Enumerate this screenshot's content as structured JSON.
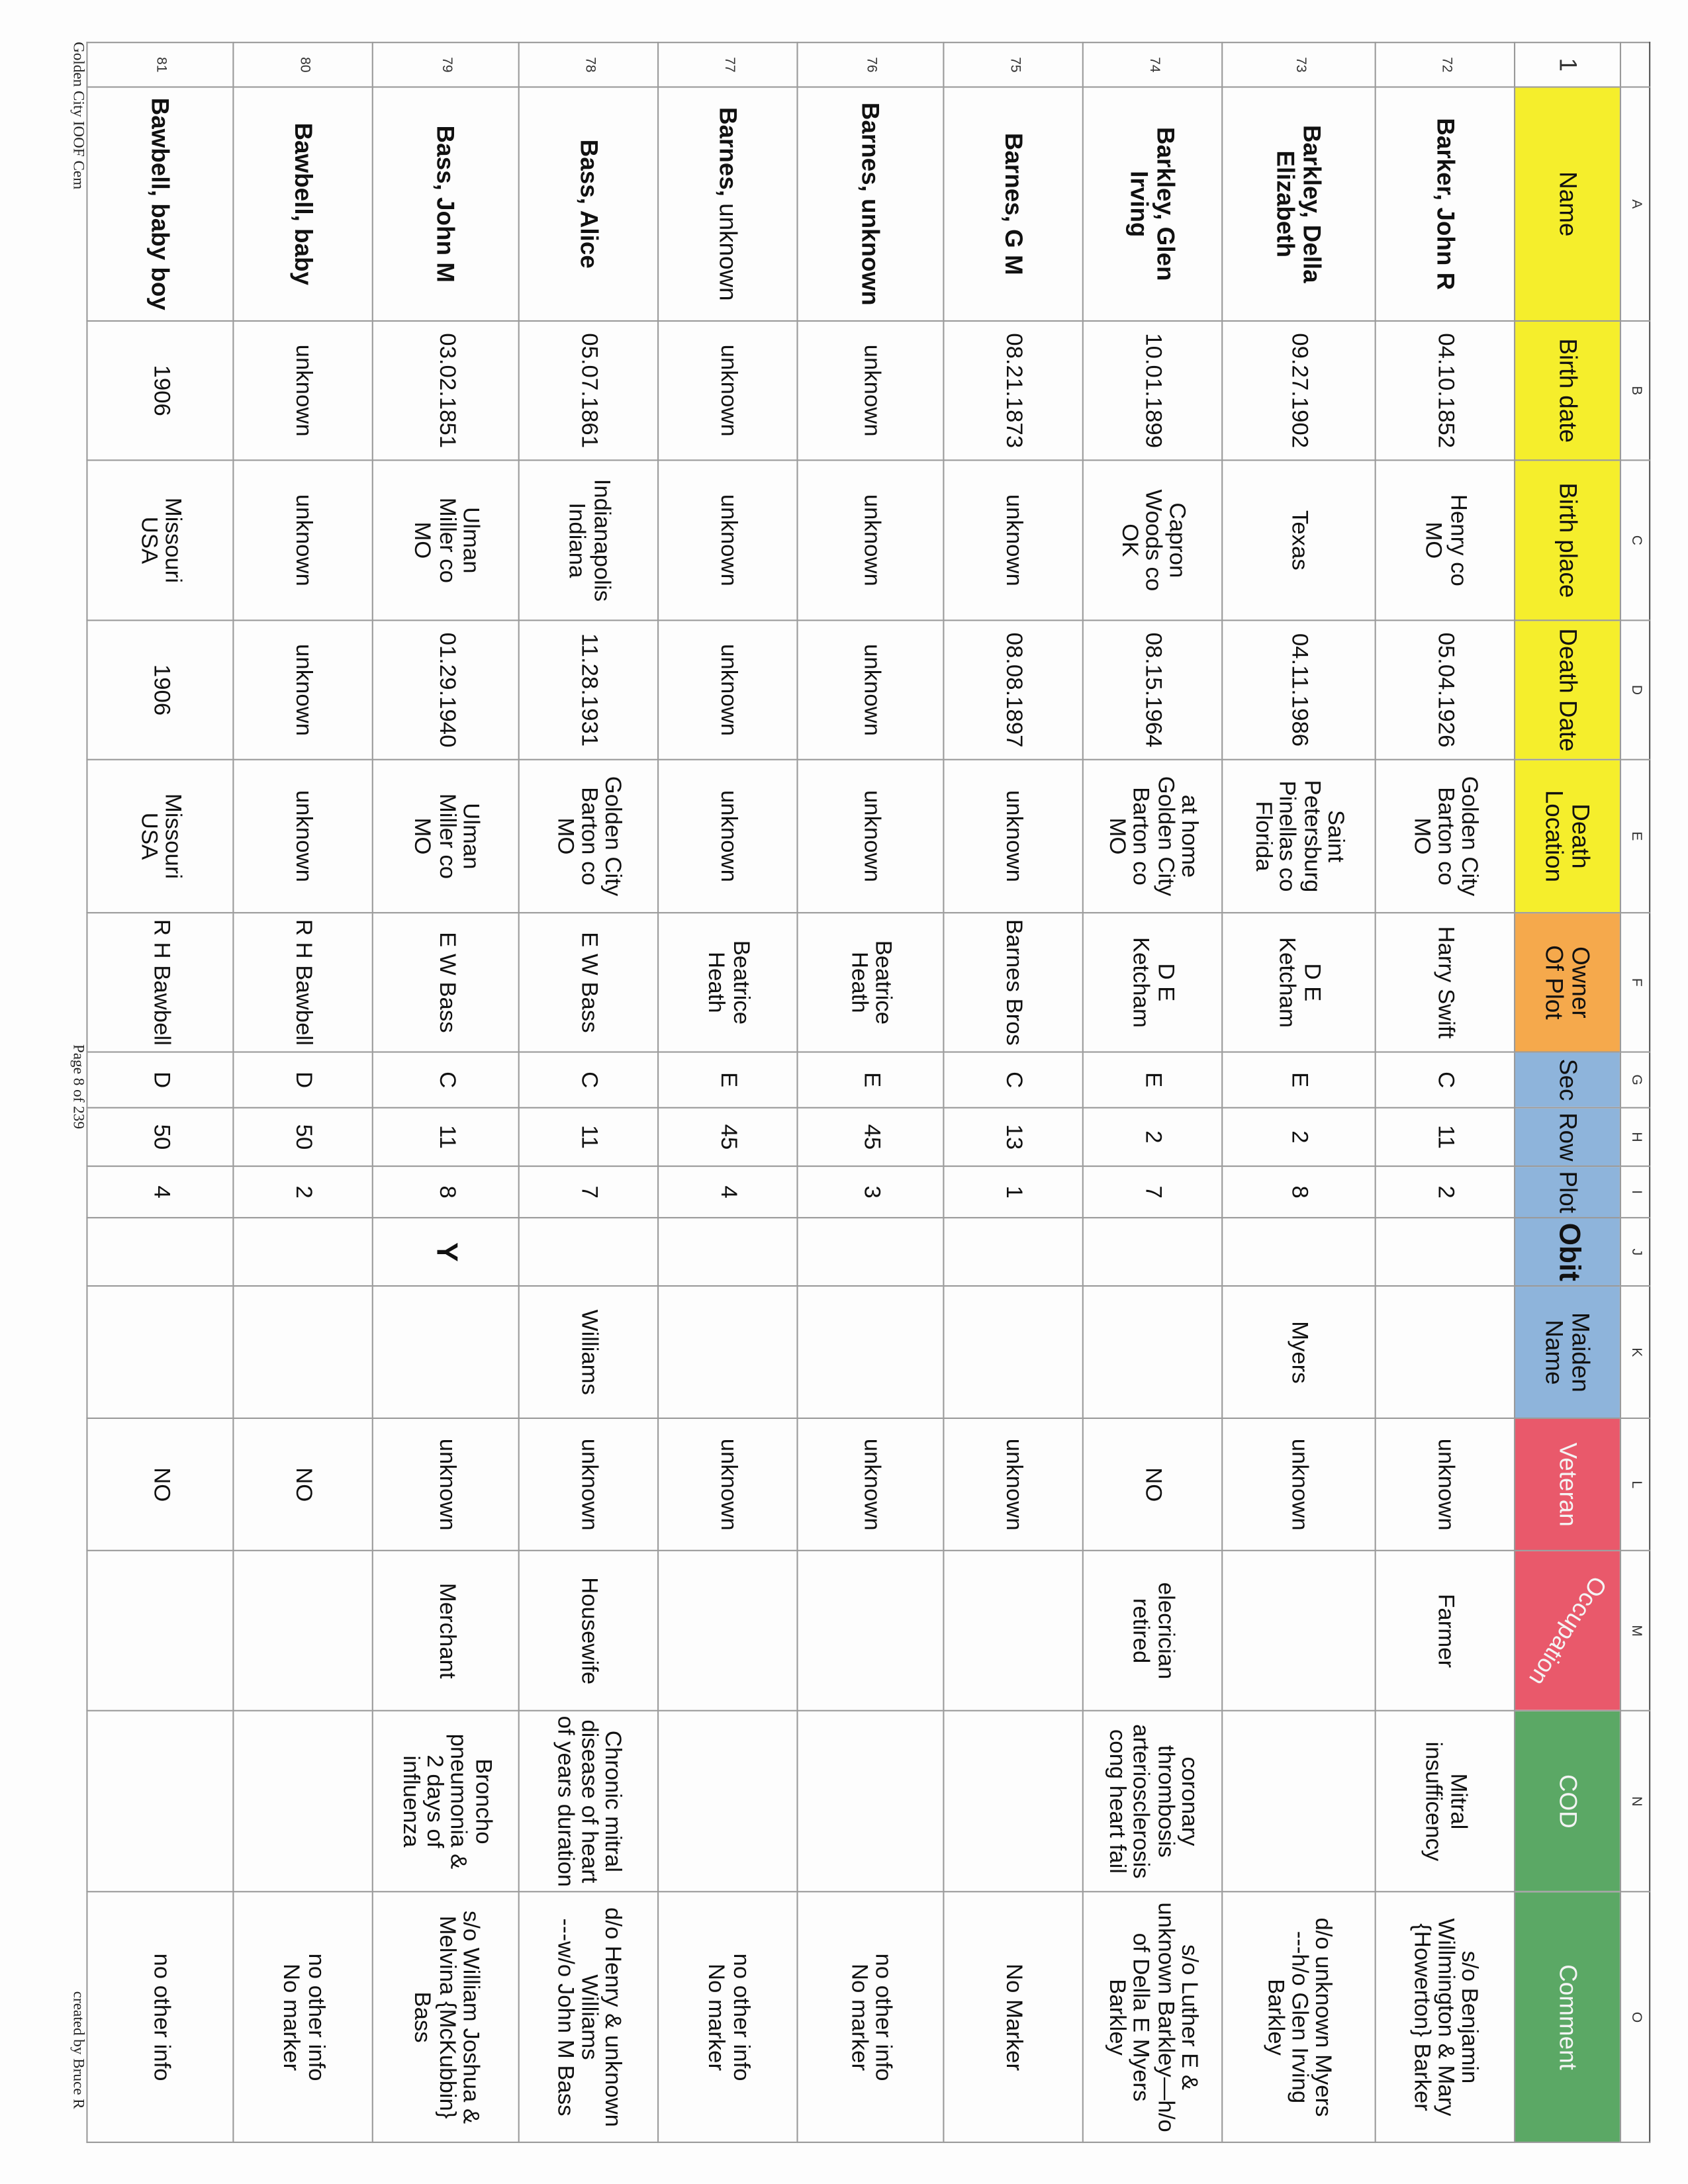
{
  "columns": {
    "letters": [
      "",
      "A",
      "B",
      "C",
      "D",
      "E",
      "F",
      "G",
      "H",
      "I",
      "J",
      "K",
      "L",
      "M",
      "N",
      "O"
    ]
  },
  "header": {
    "row_number": "1",
    "labels": [
      "Name",
      "Birth date",
      "Birth place",
      "Death Date",
      "Death\nLocation",
      "Owner\nOf Plot",
      "Sec",
      "Row",
      "Plot",
      "Obit",
      "Maiden\nName",
      "Veteran",
      "Occupation",
      "COD",
      "Comment"
    ]
  },
  "colors": {
    "yellow": "#f5ee2c",
    "orange": "#f5a94c",
    "blue": "#8eb4db",
    "red": "#e9596b",
    "green": "#5ba865"
  },
  "rows": [
    {
      "num": "72",
      "name": [
        "Barker, John R",
        ""
      ],
      "cells": [
        "04.10.1852",
        "Henry co\nMO",
        "05.04.1926",
        "Golden City\nBarton co\nMO",
        "Harry Swift",
        "C",
        "11",
        "2",
        "",
        "",
        "unknown",
        "Farmer",
        "Mitral\ninsufficency",
        "s/o Benjamin\nWillmington & Mary\n{Howerton} Barker"
      ]
    },
    {
      "num": "73",
      "name": [
        "Barkley, Della\nElizabeth",
        ""
      ],
      "cells": [
        "09.27.1902",
        "Texas",
        "04.11.1986",
        "Saint\nPetersburg\nPinellas co\nFlorida",
        "D E\nKetcham",
        "E",
        "2",
        "8",
        "",
        "Myers",
        "unknown",
        "",
        "",
        "d/o unknown Myers\n---h/o Glen Irving\nBarkley"
      ]
    },
    {
      "num": "74",
      "name": [
        "Barkley, Glen\nIrving",
        ""
      ],
      "cells": [
        "10.01.1899",
        "Capron\nWoods co\nOK",
        "08.15.1964",
        "at home\nGolden City\nBarton co\nMO",
        "D E\nKetcham",
        "E",
        "2",
        "7",
        "",
        "",
        "NO",
        "elecrician\nretired",
        "coronary\nthrombosis\narteriosclerosis\ncong heart fail",
        "s/o Luther E &\nunknown Barkley—h/o\nof Della E Myers\nBarkley"
      ]
    },
    {
      "num": "75",
      "name": [
        "Barnes, G M",
        ""
      ],
      "cells": [
        "08.21.1873",
        "unknown",
        "08.08.1897",
        "unknown",
        "Barnes Bros",
        "C",
        "13",
        "1",
        "",
        "",
        "unknown",
        "",
        "",
        "No Marker"
      ]
    },
    {
      "num": "76",
      "name": [
        "Barnes, unknown",
        ""
      ],
      "cells": [
        "unknown",
        "unknown",
        "unknown",
        "unknown",
        "Beatrice\nHeath",
        "E",
        "45",
        "3",
        "",
        "",
        "unknown",
        "",
        "",
        "no other info\nNo marker"
      ]
    },
    {
      "num": "77",
      "name": [
        "Barnes, ",
        "unknown"
      ],
      "cells": [
        "unknown",
        "unknown",
        "unknown",
        "unknown",
        "Beatrice\nHeath",
        "E",
        "45",
        "4",
        "",
        "",
        "unknown",
        "",
        "",
        "no other info\nNo marker"
      ]
    },
    {
      "num": "78",
      "name": [
        "Bass, Alice",
        ""
      ],
      "cells": [
        "05.07.1861",
        "Indianapolis\nIndiana",
        "11.28.1931",
        "Golden City\nBarton co\nMO",
        "E W Bass",
        "C",
        "11",
        "7",
        "",
        "Williams",
        "unknown",
        "Housewife",
        "Chronic mitral\ndisease of heart\nof years duration",
        "d/o Henry & unknown\nWilliams\n---w/o John M Bass"
      ]
    },
    {
      "num": "79",
      "name": [
        "Bass, John M",
        ""
      ],
      "cells": [
        "03.02.1851",
        "Ulman\nMiller co\nMO",
        "01.29.1940",
        "Ulman\nMiller co\nMO",
        "E W Bass",
        "C",
        "11",
        "8",
        "Y",
        "",
        "unknown",
        "Merchant",
        "Broncho\npneumonia &\n2 days of\ninfluenza",
        "s/o William Joshua &\nMelvina {McKubbin}\nBass"
      ]
    },
    {
      "num": "80",
      "name": [
        "Bawbell, baby",
        ""
      ],
      "cells": [
        "unknown",
        "unknown",
        "unknown",
        "unknown",
        "R H Bawbell",
        "D",
        "50",
        "2",
        "",
        "",
        "NO",
        "",
        "",
        "no other info\nNo marker"
      ]
    },
    {
      "num": "81",
      "name": [
        "Bawbell, baby boy",
        ""
      ],
      "cells": [
        "1906",
        "Missouri\nUSA",
        "1906",
        "Missouri\nUSA",
        "R H Bawbell",
        "D",
        "50",
        "4",
        "",
        "",
        "NO",
        "",
        "",
        "no other info"
      ]
    }
  ],
  "footer": {
    "left": "Golden City IOOF Cem",
    "center": "Page 8 of 239",
    "right": "created by Bruce R"
  }
}
